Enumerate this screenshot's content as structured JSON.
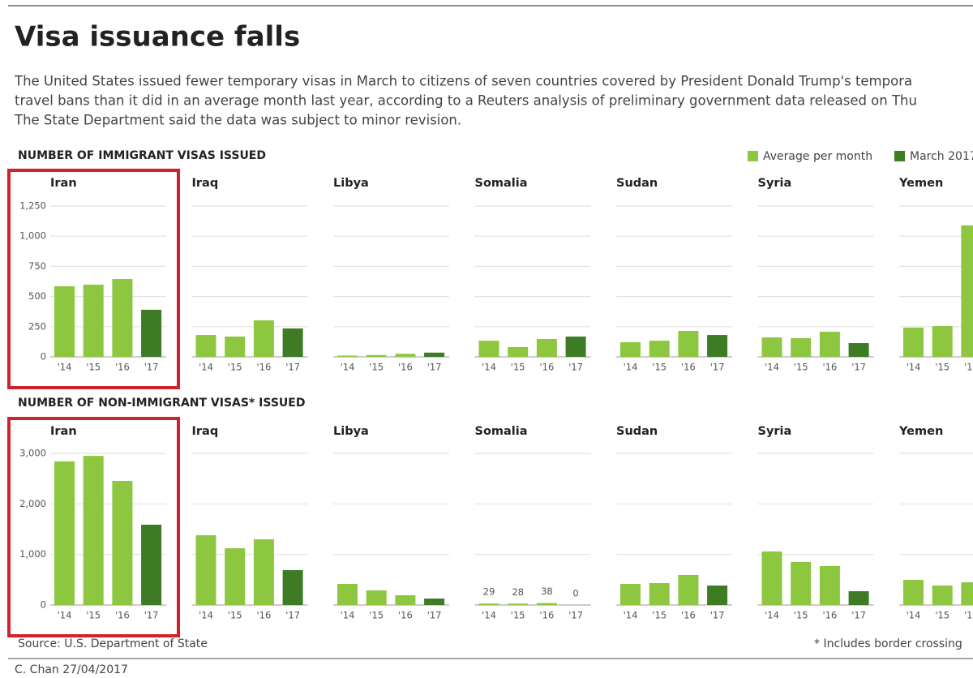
{
  "title": "Visa issuance falls",
  "subtitle_lines": [
    "The United States issued fewer temporary visas in March to citizens of seven countries covered by President Donald Trump's tempora",
    "travel bans than it did in an average month last year, according to a Reuters analysis of preliminary government data released on Thu",
    "The State Department said the data was subject to minor revision."
  ],
  "legend": [
    {
      "name": "Average per month",
      "color": "#8dc63f"
    },
    {
      "name": "March 2017",
      "color": "#3e7b25"
    }
  ],
  "category_series": [
    0,
    0,
    0,
    1
  ],
  "source": "Source: U.S. Department of State",
  "footnote": "* Includes border crossing",
  "credit": "C. Chan  27/04/2017",
  "chart_data": [
    {
      "type": "bar",
      "title": "NUMBER OF IMMIGRANT VISAS ISSUED",
      "categories": [
        "'14",
        "'15",
        "'16",
        "'17"
      ],
      "ylim": [
        0,
        1250
      ],
      "yticks": [
        0,
        250,
        500,
        750,
        {
          "value": 1000,
          "label": "1,000"
        },
        {
          "value": 1250,
          "label": "1,250"
        }
      ],
      "grid": true,
      "panels": [
        {
          "name": "Iran",
          "values": [
            585,
            598,
            645,
            390
          ]
        },
        {
          "name": "Iraq",
          "values": [
            181,
            168,
            302,
            235
          ]
        },
        {
          "name": "Libya",
          "values": [
            10,
            15,
            25,
            35
          ]
        },
        {
          "name": "Somalia",
          "values": [
            134,
            81,
            148,
            168
          ]
        },
        {
          "name": "Sudan",
          "values": [
            121,
            134,
            215,
            181
          ]
        },
        {
          "name": "Syria",
          "values": [
            161,
            155,
            208,
            114
          ]
        },
        {
          "name": "Yemen",
          "values": [
            242,
            255,
            1089,
            null
          ]
        }
      ]
    },
    {
      "type": "bar",
      "title": "NUMBER OF NON-IMMIGRANT VISAS* ISSUED",
      "categories": [
        "'14",
        "'15",
        "'16",
        "'17"
      ],
      "ylim": [
        0,
        3000
      ],
      "yticks": [
        0,
        {
          "value": 1000,
          "label": "1,000"
        },
        {
          "value": 2000,
          "label": "2,000"
        },
        {
          "value": 3000,
          "label": "3,000"
        }
      ],
      "grid": true,
      "panels": [
        {
          "name": "Iran",
          "values": [
            2840,
            2950,
            2455,
            1589
          ]
        },
        {
          "name": "Iraq",
          "values": [
            1380,
            1123,
            1300,
            690
          ]
        },
        {
          "name": "Libya",
          "values": [
            417,
            289,
            193,
            128
          ]
        },
        {
          "name": "Somalia",
          "values": [
            29,
            28,
            38,
            0
          ],
          "value_labels_shown": true
        },
        {
          "name": "Sudan",
          "values": [
            417,
            433,
            594,
            385
          ]
        },
        {
          "name": "Syria",
          "values": [
            1059,
            851,
            770,
            273
          ]
        },
        {
          "name": "Yemen",
          "values": [
            498,
            385,
            450,
            null
          ]
        }
      ]
    }
  ]
}
